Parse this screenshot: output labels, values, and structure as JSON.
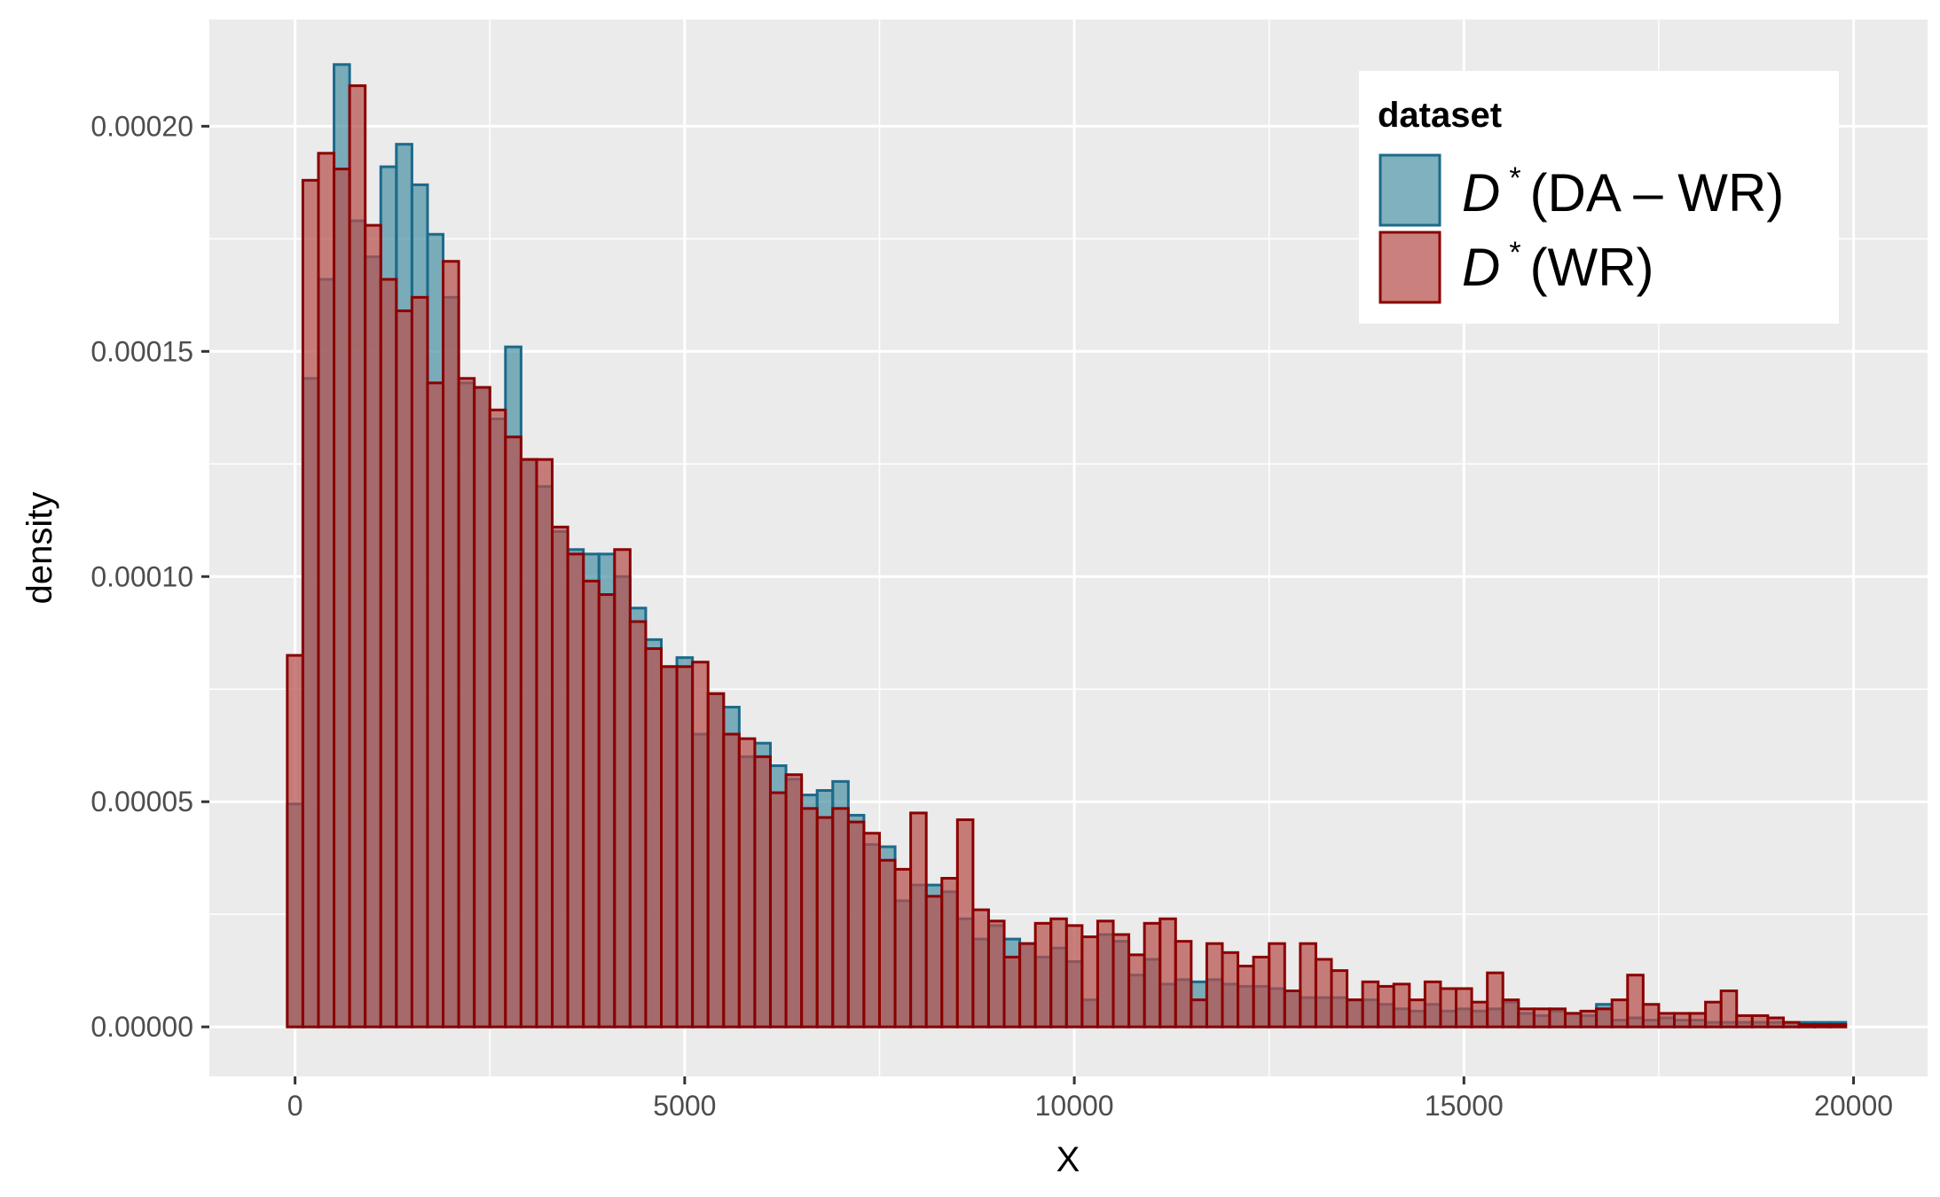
{
  "chart_data": {
    "type": "bar",
    "subtype": "overlaid-histogram",
    "xlabel": "X",
    "ylabel": "density",
    "xlim": [
      -1100,
      20950
    ],
    "ylim": [
      -1.1e-05,
      0.0002237
    ],
    "x_ticks": [
      0,
      5000,
      10000,
      15000,
      20000
    ],
    "x_tick_labels": [
      "0",
      "5000",
      "10000",
      "15000",
      "20000"
    ],
    "y_ticks": [
      0,
      5e-05,
      0.0001,
      0.00015,
      0.0002
    ],
    "y_tick_labels": [
      "0.00000",
      "0.00005",
      "0.00010",
      "0.00015",
      "0.00020"
    ],
    "grid": true,
    "bin_width": 200,
    "first_bin_center": 0,
    "legend": {
      "title": "dataset",
      "position": "top-right"
    },
    "series": [
      {
        "name_parts": [
          "D",
          "*",
          "(DA – WR)"
        ],
        "fill": "#4A90A4",
        "fill_opacity": 0.7,
        "stroke": "#1B6A8A",
        "values": [
          4.95e-05,
          0.000144,
          0.000166,
          0.0002137,
          0.000179,
          0.000171,
          0.000191,
          0.000196,
          0.000187,
          0.000176,
          0.000162,
          0.000143,
          0.000142,
          0.000135,
          0.000151,
          0.000126,
          0.00012,
          0.00011,
          0.000106,
          0.000105,
          0.000105,
          0.0001,
          9.3e-05,
          8.6e-05,
          8e-05,
          8.2e-05,
          6.5e-05,
          7.4e-05,
          7.1e-05,
          6e-05,
          6.3e-05,
          5.8e-05,
          5.5e-05,
          5.15e-05,
          5.25e-05,
          5.45e-05,
          4.7e-05,
          4.05e-05,
          4e-05,
          2.8e-05,
          3.15e-05,
          3.15e-05,
          3e-05,
          2.4e-05,
          1.95e-05,
          2.25e-05,
          1.95e-05,
          1.85e-05,
          1.55e-05,
          1.75e-05,
          1.45e-05,
          6e-06,
          2.05e-05,
          1.9e-05,
          1.15e-05,
          1.5e-05,
          9.5e-06,
          1.05e-05,
          1e-05,
          1.05e-05,
          9.5e-06,
          9e-06,
          9e-06,
          8.5e-06,
          8e-06,
          6.5e-06,
          6.5e-06,
          6.5e-06,
          6e-06,
          6e-06,
          5e-06,
          4e-06,
          3.5e-06,
          5e-06,
          3.5e-06,
          4e-06,
          3.5e-06,
          4e-06,
          5.5e-06,
          3e-06,
          2.5e-06,
          3.5e-06,
          3e-06,
          2.5e-06,
          5e-06,
          1.5e-06,
          2e-06,
          1.5e-06,
          2e-06,
          1.5e-06,
          1.5e-06,
          1e-06,
          1e-06,
          1e-06,
          1e-06,
          1e-06,
          1e-06,
          1e-06,
          1e-06,
          1e-06
        ]
      },
      {
        "name_parts": [
          "D",
          "*",
          "(WR)"
        ],
        "fill": "#B5504C",
        "fill_opacity": 0.72,
        "stroke": "#8B0000",
        "values": [
          8.25e-05,
          0.000188,
          0.000194,
          0.0001905,
          0.000209,
          0.000178,
          0.000166,
          0.000159,
          0.000162,
          0.000143,
          0.00017,
          0.000144,
          0.000142,
          0.000137,
          0.000131,
          0.000126,
          0.000126,
          0.000111,
          0.000105,
          9.9e-05,
          9.6e-05,
          0.000106,
          9e-05,
          8.4e-05,
          8e-05,
          8e-05,
          8.1e-05,
          7.4e-05,
          6.5e-05,
          6.4e-05,
          6e-05,
          5.2e-05,
          5.6e-05,
          4.85e-05,
          4.65e-05,
          4.85e-05,
          4.55e-05,
          4.3e-05,
          3.7e-05,
          3.5e-05,
          4.75e-05,
          2.9e-05,
          3.3e-05,
          4.6e-05,
          2.6e-05,
          2.35e-05,
          1.55e-05,
          1.85e-05,
          2.3e-05,
          2.4e-05,
          2.25e-05,
          2e-05,
          2.35e-05,
          2.05e-05,
          1.6e-05,
          2.3e-05,
          2.4e-05,
          1.9e-05,
          6e-06,
          1.85e-05,
          1.65e-05,
          1.35e-05,
          1.55e-05,
          1.85e-05,
          8e-06,
          1.85e-05,
          1.5e-05,
          1.25e-05,
          6e-06,
          1e-05,
          9e-06,
          9.5e-06,
          6e-06,
          1e-05,
          8.5e-06,
          8.5e-06,
          5.5e-06,
          1.2e-05,
          6e-06,
          4e-06,
          4e-06,
          4e-06,
          3e-06,
          3.5e-06,
          4e-06,
          6e-06,
          1.15e-05,
          5e-06,
          3e-06,
          3e-06,
          3e-06,
          5.5e-06,
          8e-06,
          2.5e-06,
          2.5e-06,
          2e-06,
          1e-06,
          5e-07,
          5e-07,
          5e-07
        ]
      }
    ]
  }
}
